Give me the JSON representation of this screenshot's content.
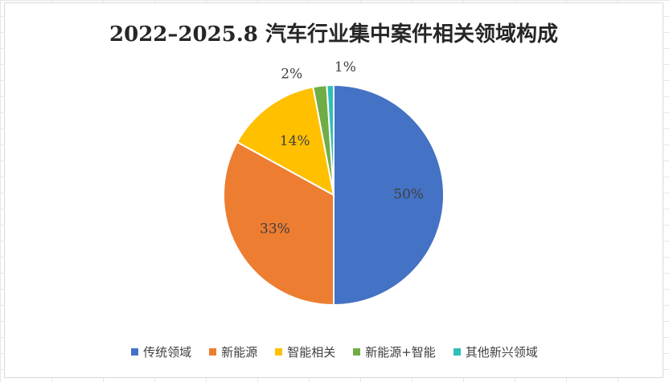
{
  "chart_data": {
    "type": "pie",
    "title": "2022–2025.8 汽车行业集中案件相关领域构成",
    "categories": [
      "传统领域",
      "新能源",
      "智能相关",
      "新能源+智能",
      "其他新兴领域"
    ],
    "values": [
      50,
      33,
      14,
      2,
      1
    ],
    "data_labels": [
      "50%",
      "33%",
      "14%",
      "2%",
      "1%"
    ],
    "colors": [
      "#4472C4",
      "#ED7D31",
      "#FFC000",
      "#70AD47",
      "#2EC0B8"
    ],
    "start_angle": "12 o'clock",
    "direction": "clockwise",
    "legend_position": "bottom"
  }
}
